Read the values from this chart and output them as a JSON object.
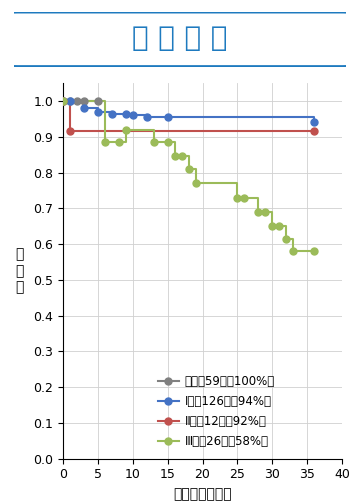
{
  "title": "無 再 発 率",
  "xlabel": "観察期間（月）",
  "ylabel": "再\n発\n率",
  "xlim": [
    0,
    40
  ],
  "ylim": [
    0,
    1.05
  ],
  "xticks": [
    0,
    5,
    10,
    15,
    20,
    25,
    30,
    35,
    40
  ],
  "yticks": [
    0,
    0.1,
    0.2,
    0.3,
    0.4,
    0.5,
    0.6,
    0.7,
    0.8,
    0.9,
    1
  ],
  "series": [
    {
      "label": "０期（59例：100%）",
      "color": "#808080",
      "x": [
        0,
        1,
        2,
        3,
        5
      ],
      "y": [
        1.0,
        1.0,
        1.0,
        1.0,
        1.0
      ]
    },
    {
      "label": "Ⅰ期（126例：94%）",
      "color": "#4472c4",
      "x": [
        0,
        1,
        3,
        5,
        7,
        9,
        10,
        12,
        15,
        36
      ],
      "y": [
        1.0,
        1.0,
        0.98,
        0.97,
        0.965,
        0.965,
        0.96,
        0.955,
        0.955,
        0.94
      ]
    },
    {
      "label": "Ⅱ期（12例：92%）",
      "color": "#c0504d",
      "x": [
        0,
        1,
        36
      ],
      "y": [
        1.0,
        0.915,
        0.915
      ]
    },
    {
      "label": "Ⅲ期（26例：58%）",
      "color": "#9bbb59",
      "x": [
        0,
        6,
        8,
        9,
        13,
        15,
        16,
        17,
        18,
        19,
        25,
        26,
        28,
        29,
        30,
        31,
        32,
        33,
        36
      ],
      "y": [
        1.0,
        0.885,
        0.885,
        0.92,
        0.885,
        0.885,
        0.845,
        0.845,
        0.81,
        0.77,
        0.73,
        0.73,
        0.69,
        0.69,
        0.65,
        0.65,
        0.615,
        0.58,
        0.58
      ]
    }
  ],
  "background_color": "#ffffff",
  "title_box_color": "#1e7abf",
  "title_fontsize": 20,
  "axis_fontsize": 9,
  "legend_fontsize": 8.5,
  "marker_size": 5
}
